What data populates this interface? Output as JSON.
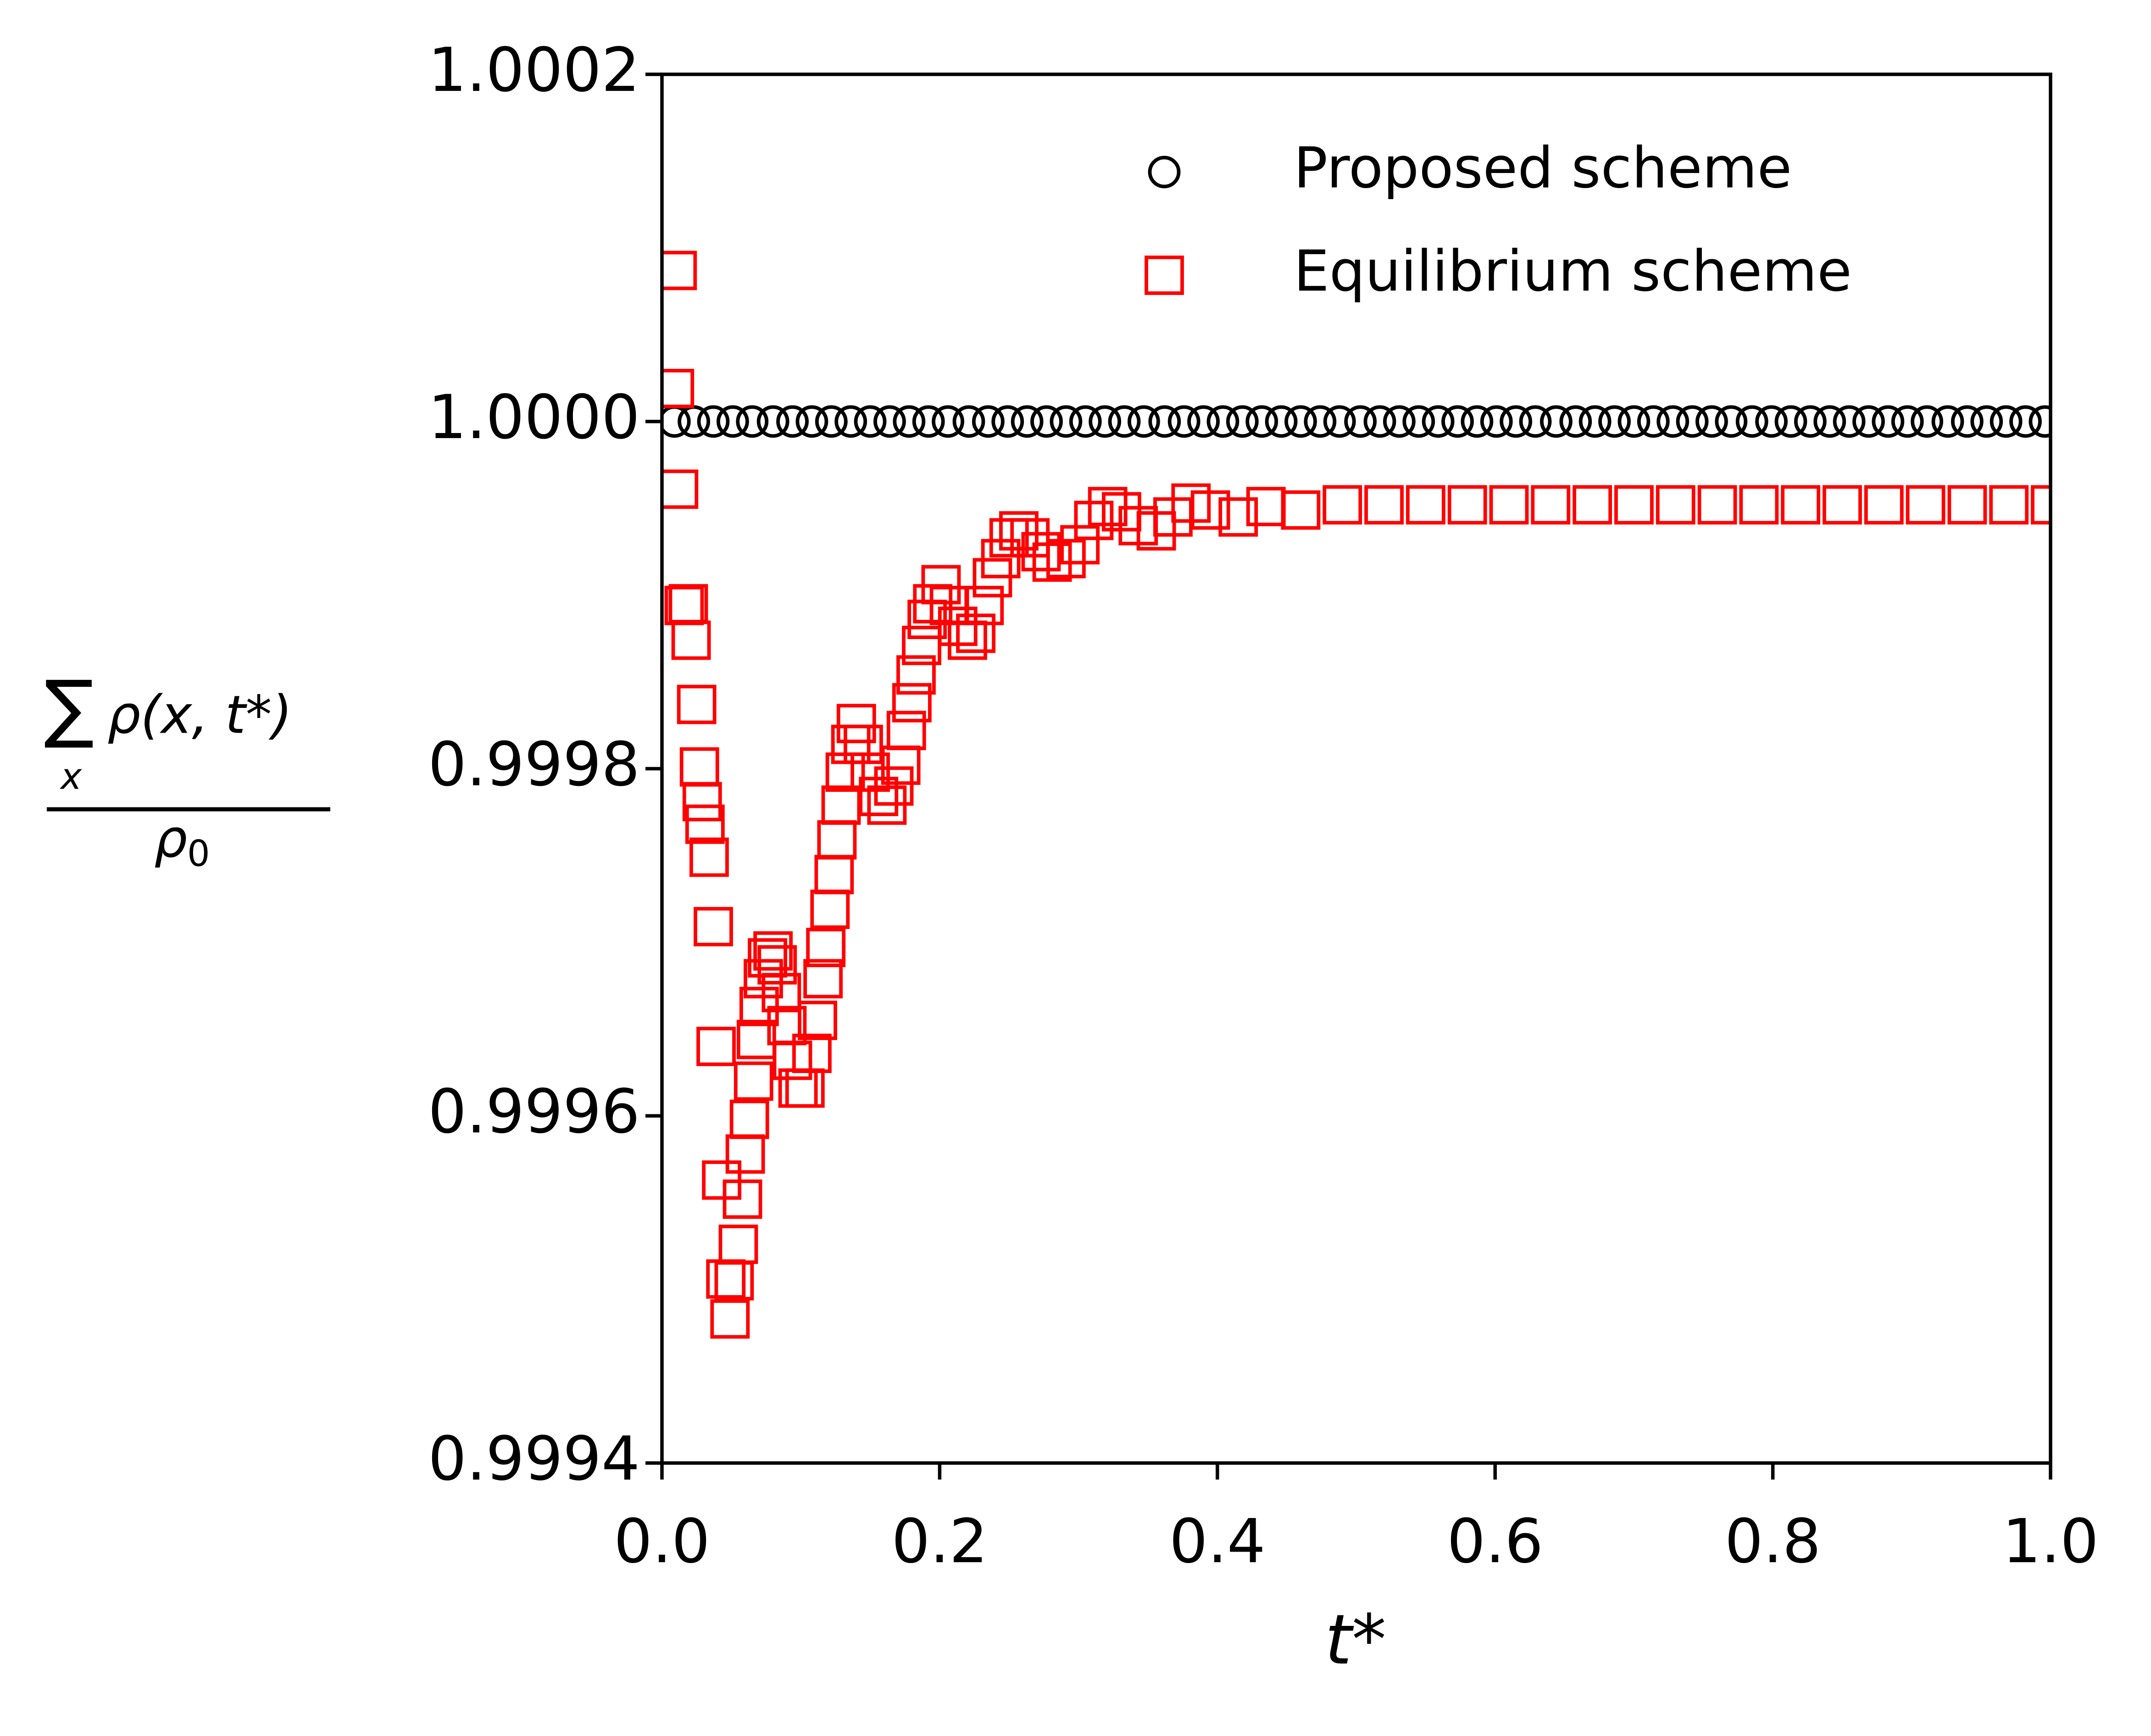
{
  "chart_data": {
    "type": "scatter",
    "xlabel": "t*",
    "ylabel": {
      "sum": "∑",
      "sum_index": "x",
      "numerator": "ρ(x, t*)",
      "denominator": "ρ",
      "denominator_sub": "0"
    },
    "xlim": [
      0,
      1
    ],
    "ylim": [
      0.9994,
      1.0002
    ],
    "xticks": [
      {
        "value": 0,
        "label": "0.0"
      },
      0.2,
      0.4,
      0.6,
      0.8,
      {
        "value": 1,
        "label": "1.0"
      }
    ],
    "yticks": [
      0.9994,
      0.9996,
      0.9998,
      {
        "value": 1,
        "label": "1.0000"
      },
      1.0002
    ],
    "grid": false,
    "legend": "upper right",
    "series": [
      {
        "name": "Proposed scheme",
        "color": "#000000",
        "marker": "o",
        "x": [
          0.009,
          0.023,
          0.037,
          0.051,
          0.065,
          0.08,
          0.094,
          0.108,
          0.122,
          0.136,
          0.15,
          0.164,
          0.178,
          0.192,
          0.206,
          0.221,
          0.235,
          0.249,
          0.263,
          0.277,
          0.291,
          0.305,
          0.319,
          0.333,
          0.347,
          0.362,
          0.376,
          0.39,
          0.404,
          0.418,
          0.432,
          0.446,
          0.46,
          0.474,
          0.488,
          0.503,
          0.517,
          0.531,
          0.545,
          0.559,
          0.573,
          0.587,
          0.601,
          0.615,
          0.629,
          0.644,
          0.658,
          0.672,
          0.686,
          0.7,
          0.714,
          0.728,
          0.742,
          0.756,
          0.77,
          0.785,
          0.799,
          0.813,
          0.827,
          0.841,
          0.855,
          0.869,
          0.883,
          0.897,
          0.911,
          0.926,
          0.94,
          0.954,
          0.968,
          0.982,
          0.996
        ],
        "values": [
          1,
          1,
          1,
          1,
          1,
          1,
          1,
          1,
          1,
          1,
          1,
          1,
          1,
          1,
          1,
          1,
          1,
          1,
          1,
          1,
          1,
          1,
          1,
          1,
          1,
          1,
          1,
          1,
          1,
          1,
          1,
          1,
          1,
          1,
          1,
          1,
          1,
          1,
          1,
          1,
          1,
          1,
          1,
          1,
          1,
          1,
          1,
          1,
          1,
          1,
          1,
          1,
          1,
          1,
          1,
          1,
          1,
          1,
          1,
          1,
          1,
          1,
          1,
          1,
          1,
          1,
          1,
          1,
          1,
          1,
          1
        ]
      },
      {
        "name": "Equilibrium scheme",
        "color": "#ff0000",
        "marker": "s",
        "x": [
          0.011,
          0.009,
          0.012,
          0.016,
          0.019,
          0.021,
          0.025,
          0.027,
          0.029,
          0.031,
          0.034,
          0.037,
          0.039,
          0.043,
          0.046,
          0.049,
          0.052,
          0.055,
          0.058,
          0.06,
          0.063,
          0.066,
          0.068,
          0.07,
          0.073,
          0.076,
          0.08,
          0.083,
          0.086,
          0.09,
          0.094,
          0.098,
          0.103,
          0.108,
          0.112,
          0.116,
          0.118,
          0.121,
          0.124,
          0.126,
          0.129,
          0.132,
          0.136,
          0.14,
          0.145,
          0.15,
          0.156,
          0.162,
          0.167,
          0.172,
          0.176,
          0.18,
          0.183,
          0.187,
          0.191,
          0.195,
          0.201,
          0.207,
          0.213,
          0.22,
          0.226,
          0.232,
          0.238,
          0.244,
          0.25,
          0.257,
          0.265,
          0.273,
          0.281,
          0.291,
          0.301,
          0.311,
          0.321,
          0.331,
          0.343,
          0.356,
          0.368,
          0.381,
          0.395,
          0.415,
          0.435,
          0.46,
          0.49,
          0.52,
          0.55,
          0.58,
          0.61,
          0.64,
          0.67,
          0.7,
          0.73,
          0.76,
          0.79,
          0.82,
          0.85,
          0.88,
          0.91,
          0.94,
          0.97,
          1.0
        ],
        "values": [
          1.000087,
          1.000019,
          0.999961,
          0.999894,
          0.999895,
          0.999874,
          0.999837,
          0.999801,
          0.999781,
          0.999768,
          0.999749,
          0.999709,
          0.99964,
          0.999563,
          0.999506,
          0.999483,
          0.999505,
          0.999526,
          0.999552,
          0.999578,
          0.999598,
          0.99962,
          0.999644,
          0.999663,
          0.999679,
          0.999691,
          0.999695,
          0.999687,
          0.999671,
          0.999652,
          0.999632,
          0.999616,
          0.999616,
          0.999636,
          0.999655,
          0.999679,
          0.999697,
          0.999719,
          0.999739,
          0.999759,
          0.999779,
          0.999798,
          0.999814,
          0.999826,
          0.999814,
          0.999798,
          0.999784,
          0.999779,
          0.99979,
          0.999802,
          0.999822,
          0.999838,
          0.999854,
          0.999871,
          0.999886,
          0.999895,
          0.999906,
          0.999894,
          0.999882,
          0.999874,
          0.999878,
          0.999894,
          0.99991,
          0.999921,
          0.999933,
          0.999937,
          0.999933,
          0.999925,
          0.999919,
          0.999921,
          0.999929,
          0.999943,
          0.999951,
          0.999948,
          0.99994,
          0.999937,
          0.999945,
          0.999953,
          0.999949,
          0.999945,
          0.999951,
          0.999949,
          0.999952,
          0.999952,
          0.999952,
          0.999952,
          0.999952,
          0.999952,
          0.999952,
          0.999952,
          0.999952,
          0.999952,
          0.999952,
          0.999952,
          0.999952,
          0.999952,
          0.999952,
          0.999952,
          0.999952,
          0.999952
        ]
      }
    ]
  }
}
